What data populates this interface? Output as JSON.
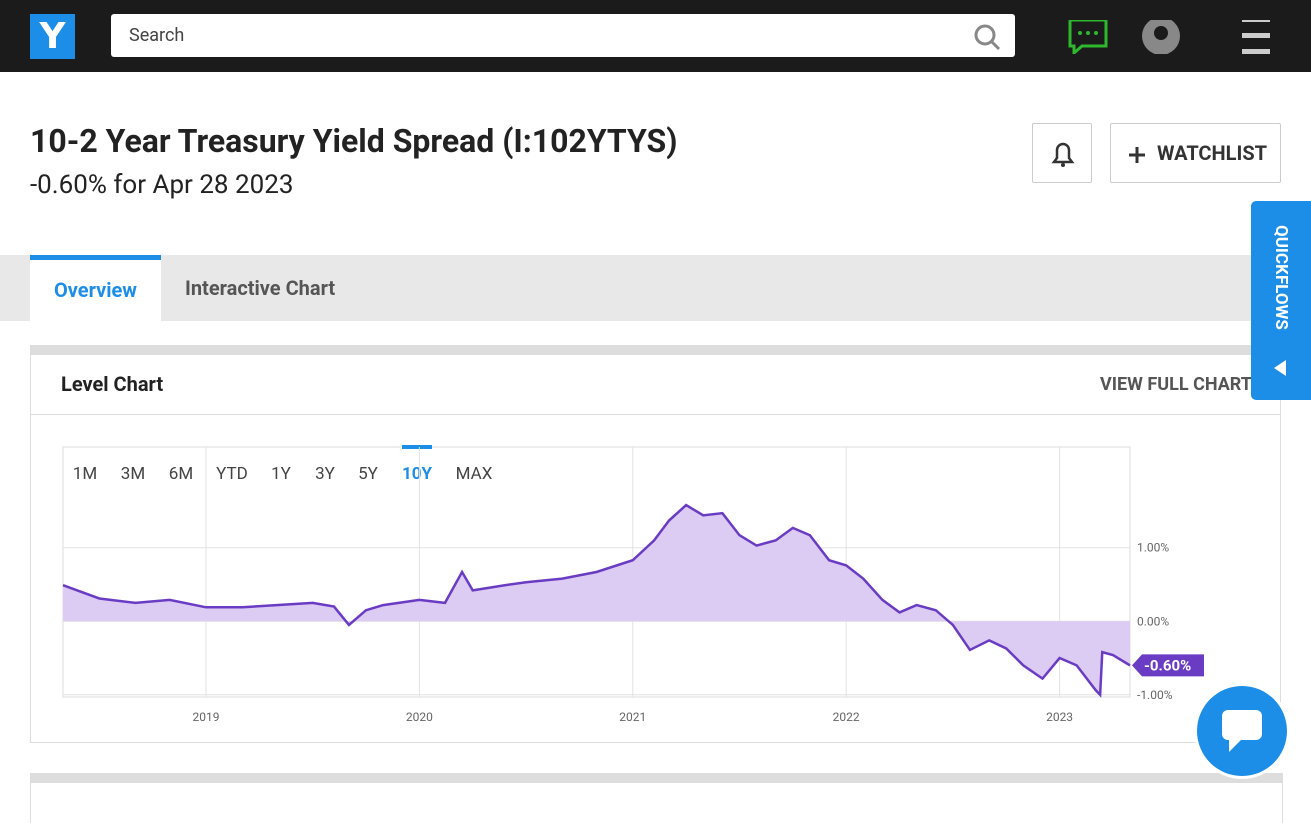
{
  "header": {
    "logo": "Y",
    "search_placeholder": "Search"
  },
  "page": {
    "title": "10-2 Year Treasury Yield Spread (I:102YTYS)",
    "subtitle": "-0.60% for Apr 28 2023",
    "watchlist": "WATCHLIST"
  },
  "tabs": [
    "Overview",
    "Interactive Chart"
  ],
  "active_tab": 0,
  "card": {
    "title": "Level Chart",
    "link": "VIEW FULL CHART"
  },
  "quickflows": "QUICKFLOWS",
  "range_buttons": [
    "1M",
    "3M",
    "6M",
    "YTD",
    "1Y",
    "3Y",
    "5Y",
    "10Y",
    "MAX"
  ],
  "active_range": 7,
  "chart_data": {
    "type": "line",
    "color": "#6a3cc4",
    "fill": "#dccbf2",
    "grid": true,
    "x": [
      2018.33,
      2018.5,
      2018.67,
      2018.83,
      2019.0,
      2019.17,
      2019.33,
      2019.5,
      2019.6,
      2019.67,
      2019.75,
      2019.83,
      2020.0,
      2020.12,
      2020.2,
      2020.25,
      2020.4,
      2020.5,
      2020.67,
      2020.83,
      2021.0,
      2021.1,
      2021.17,
      2021.25,
      2021.33,
      2021.42,
      2021.5,
      2021.58,
      2021.67,
      2021.75,
      2021.83,
      2021.92,
      2022.0,
      2022.08,
      2022.17,
      2022.25,
      2022.33,
      2022.42,
      2022.5,
      2022.58,
      2022.67,
      2022.75,
      2022.83,
      2022.92,
      2023.0,
      2023.08,
      2023.17,
      2023.19,
      2023.2,
      2023.25,
      2023.33
    ],
    "values": [
      0.49,
      0.31,
      0.25,
      0.29,
      0.19,
      0.19,
      0.22,
      0.25,
      0.2,
      -0.05,
      0.15,
      0.22,
      0.29,
      0.25,
      0.67,
      0.42,
      0.49,
      0.53,
      0.58,
      0.67,
      0.83,
      1.1,
      1.37,
      1.58,
      1.44,
      1.47,
      1.17,
      1.03,
      1.1,
      1.27,
      1.17,
      0.83,
      0.76,
      0.58,
      0.29,
      0.12,
      0.22,
      0.15,
      -0.05,
      -0.39,
      -0.26,
      -0.37,
      -0.6,
      -0.78,
      -0.5,
      -0.6,
      -0.94,
      -1.0,
      -0.42,
      -0.46,
      -0.6
    ],
    "xlim": [
      2018.33,
      2023.33
    ],
    "xticks": [
      2019,
      2020,
      2021,
      2022,
      2023
    ],
    "ylim": [
      -1.03,
      2.37
    ],
    "yticks": [
      {
        "value": -1,
        "label": "-1.00%"
      },
      {
        "value": 0,
        "label": "0.00%"
      },
      {
        "value": 1,
        "label": "1.00%"
      }
    ],
    "last_label": {
      "value": -0.6,
      "label": "-0.60%"
    }
  }
}
